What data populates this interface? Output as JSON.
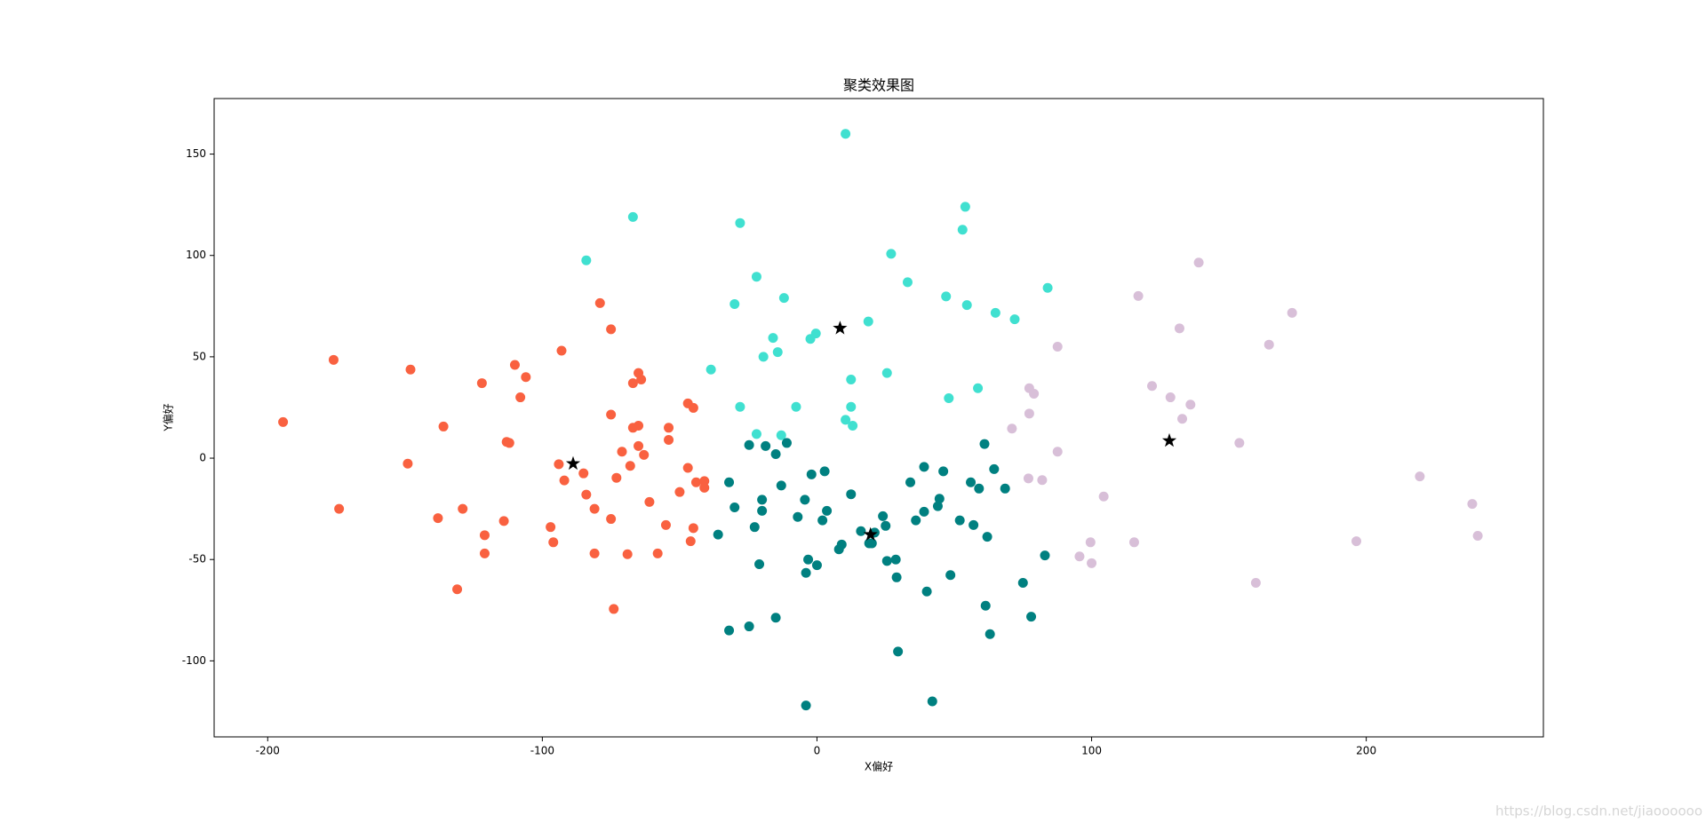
{
  "chart_data": {
    "type": "scatter",
    "title": "聚类效果图",
    "x_label": "X偏好",
    "y_label": "Y偏好",
    "xlim": [
      -219.5,
      264.5
    ],
    "ylim": [
      -137.5,
      177.4
    ],
    "xticks": [
      -200,
      -100,
      0,
      100,
      200
    ],
    "yticks": [
      -100,
      -50,
      0,
      50,
      100,
      150
    ],
    "watermark": "https://blog.csdn.net/jiaoooooo",
    "series": [
      {
        "color": "#f96140",
        "marker": "circle",
        "x": [
          -194.4,
          -176,
          -174,
          -148,
          -149,
          -136,
          -138,
          -129,
          -131,
          -122,
          -121,
          -121,
          -114,
          -113,
          -112,
          -110,
          -106,
          -108,
          -93,
          -94,
          -92,
          -97,
          -96,
          -85,
          -84,
          -81,
          -81,
          -79,
          -75,
          -75,
          -75,
          -74,
          -73,
          -71,
          -68,
          -69,
          -67,
          -65,
          -64,
          -67,
          -65,
          -65,
          -63,
          -61,
          -58,
          -55,
          -54,
          -54,
          -50,
          -47,
          -45,
          -47,
          -44,
          -45,
          -46,
          -41,
          -41
        ],
        "y": [
          17.8,
          48.5,
          -25,
          43.7,
          -2.7,
          15.6,
          -29.6,
          -25,
          -64.7,
          37,
          -38,
          -47,
          -31,
          8,
          7.5,
          46,
          40,
          30,
          53,
          -3,
          -11,
          -34,
          -41.5,
          -7.5,
          -18,
          -25,
          -47,
          76.5,
          63.6,
          21.5,
          -30,
          -74.4,
          -9.7,
          3.2,
          -3.8,
          -47.4,
          37,
          42,
          38.8,
          15,
          16,
          6,
          1.6,
          -21.6,
          -47,
          -33,
          15,
          9,
          -16.7,
          27,
          24.8,
          -4.8,
          -11.9,
          -34.5,
          -41,
          -11.3,
          -14.6
        ]
      },
      {
        "color": "#40e0d0",
        "marker": "circle",
        "x": [
          10.4,
          -67,
          -28,
          54,
          53,
          -84,
          -22,
          27,
          -12,
          -30,
          33,
          47,
          54.6,
          65,
          72,
          84,
          18.7,
          -16,
          -0.4,
          -2.4,
          -19.5,
          -14.3,
          -38.6,
          25.5,
          12.4,
          58.6,
          48,
          -28,
          -7.6,
          12.4,
          10.4,
          13,
          -22,
          -13
        ],
        "y": [
          160,
          119,
          116,
          124,
          112.7,
          97.6,
          89.5,
          100.8,
          79,
          76,
          86.8,
          79.8,
          75.5,
          71.7,
          68.5,
          84,
          67.4,
          59.3,
          61.5,
          58.8,
          50,
          52.3,
          43.7,
          42,
          38.8,
          34.5,
          29.6,
          25.3,
          25.3,
          25.3,
          18.9,
          16,
          11.9,
          11.3
        ]
      },
      {
        "color": "#008080",
        "marker": "circle",
        "x": [
          -24.7,
          -18.7,
          -15,
          -11,
          -32,
          -2,
          2.8,
          -13,
          -30,
          -20,
          -20,
          -22.7,
          -36,
          -7,
          -4.4,
          3.6,
          2,
          12.4,
          9,
          8,
          16,
          21,
          20,
          19,
          24,
          25,
          -3.2,
          0,
          -4,
          -21,
          25.5,
          28.7,
          29,
          39,
          46,
          34,
          56,
          59,
          61,
          64.5,
          68.5,
          44.6,
          44,
          39,
          36,
          52,
          57,
          62,
          83,
          48.6,
          75,
          40,
          61.4,
          78,
          -15,
          -24.7,
          -32,
          63,
          29.5,
          -4,
          42
        ],
        "y": [
          6.5,
          6,
          2,
          7.5,
          -11.9,
          -8,
          -6.5,
          -13.5,
          -24.3,
          -20.5,
          -26,
          -34,
          -37.7,
          -29,
          -20.5,
          -26,
          -30.7,
          -17.8,
          -42.6,
          -45,
          -36,
          -36.7,
          -42,
          -42,
          -28.6,
          -33.4,
          -50,
          -52.8,
          -56.6,
          -52.3,
          -50.7,
          -50,
          -58.8,
          -4.3,
          -6.5,
          -11.9,
          -11.9,
          -15,
          7,
          -5.4,
          -15,
          -20,
          -23.7,
          -26.4,
          -30.7,
          -30.7,
          -33,
          -38.8,
          -48,
          -57.7,
          -61.5,
          -65.8,
          -72.8,
          -78.2,
          -78.7,
          -83,
          -85,
          -86.8,
          -95.4,
          -122,
          -120
        ]
      },
      {
        "color": "#d8bfd8",
        "marker": "circle",
        "x": [
          139,
          117,
          173,
          132,
          164.6,
          87.6,
          122,
          77.3,
          79,
          128.7,
          136,
          133,
          77.3,
          71,
          153.8,
          87.6,
          77,
          82,
          219.5,
          104.4,
          238.6,
          240.6,
          99.6,
          115.5,
          196.4,
          95.6,
          100,
          159.8
        ],
        "y": [
          96.5,
          80,
          71.7,
          64,
          56,
          55,
          35.6,
          34.5,
          31.8,
          30,
          26.4,
          19.4,
          22,
          14.6,
          7.5,
          3.2,
          -10,
          -10.8,
          -9,
          -18.9,
          -22.6,
          -38.3,
          -41.5,
          -41.5,
          -41,
          -48.5,
          -51.8,
          -61.5
        ]
      },
      {
        "color": "#000000",
        "marker": "star",
        "x": [
          -88.8,
          8.4,
          19.5,
          128.3
        ],
        "y": [
          -2.7,
          64.1,
          -37.7,
          8.6
        ]
      }
    ]
  }
}
